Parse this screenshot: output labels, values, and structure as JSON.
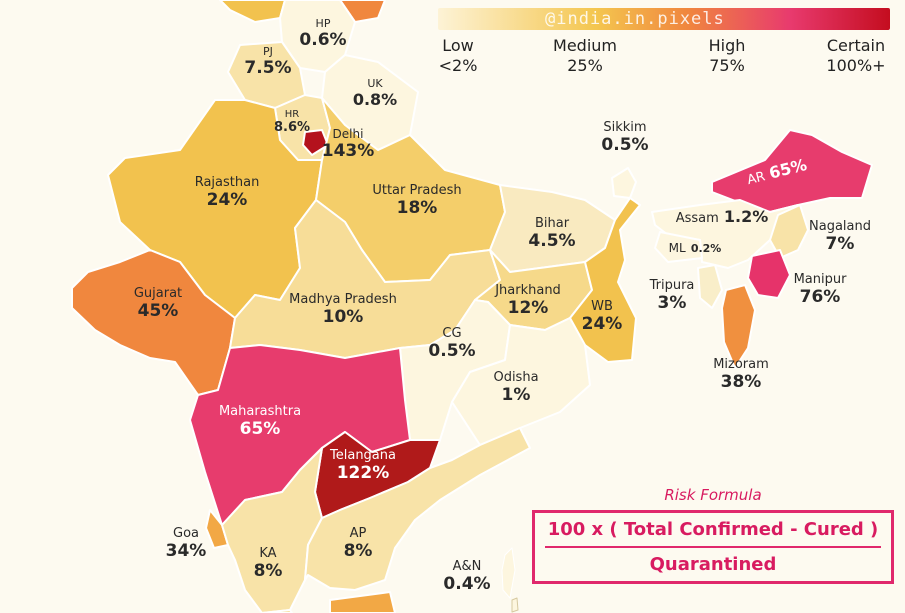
{
  "watermark": "@india.in.pixels",
  "legend": {
    "colors": [
      "#fdf3d6",
      "#f4c64f",
      "#f0873e",
      "#e83a6e",
      "#c40d1f"
    ],
    "stops": [
      {
        "name": "Low",
        "value": "<2%"
      },
      {
        "name": "Medium",
        "value": "25%"
      },
      {
        "name": "High",
        "value": "75%"
      },
      {
        "name": "Certain",
        "value": "100%+"
      }
    ]
  },
  "regions": [
    {
      "name": "HP",
      "value": "0.6%",
      "color": "#fdf6df"
    },
    {
      "name": "PJ",
      "value": "7.5%",
      "color": "#f8e3a8"
    },
    {
      "name": "UK",
      "value": "0.8%",
      "color": "#fdf6df"
    },
    {
      "name": "HR",
      "value": "8.6%",
      "color": "#f8e3a8"
    },
    {
      "name": "Delhi",
      "value": "143%",
      "color": "#b4121d"
    },
    {
      "name": "Rajasthan",
      "value": "24%",
      "color": "#f2c24e"
    },
    {
      "name": "Uttar Pradesh",
      "value": "18%",
      "color": "#f4ce6a"
    },
    {
      "name": "Sikkim",
      "value": "0.5%",
      "color": "#fdf6df"
    },
    {
      "name": "AR",
      "value": "65%",
      "color": "#e73c6d"
    },
    {
      "name": "Assam",
      "value": "1.2%",
      "color": "#fdf6df"
    },
    {
      "name": "Nagaland",
      "value": "7%",
      "color": "#f8e3a8"
    },
    {
      "name": "ML",
      "value": "0.2%",
      "color": "#fdf6df"
    },
    {
      "name": "Bihar",
      "value": "4.5%",
      "color": "#f9eac0"
    },
    {
      "name": "Gujarat",
      "value": "45%",
      "color": "#f0873e"
    },
    {
      "name": "Madhya Pradesh",
      "value": "10%",
      "color": "#f7dd98"
    },
    {
      "name": "Jharkhand",
      "value": "12%",
      "color": "#f6d98a"
    },
    {
      "name": "WB",
      "value": "24%",
      "color": "#f2c24e"
    },
    {
      "name": "Tripura",
      "value": "3%",
      "color": "#f9eec9"
    },
    {
      "name": "Manipur",
      "value": "76%",
      "color": "#e6336a"
    },
    {
      "name": "CG",
      "value": "0.5%",
      "color": "#fdf6df"
    },
    {
      "name": "Odisha",
      "value": "1%",
      "color": "#fdf6df"
    },
    {
      "name": "Mizoram",
      "value": "38%",
      "color": "#f0903f"
    },
    {
      "name": "Maharashtra",
      "value": "65%",
      "color": "#e73c6d"
    },
    {
      "name": "Telangana",
      "value": "122%",
      "color": "#b01a1a"
    },
    {
      "name": "Goa",
      "value": "34%",
      "color": "#f2a845"
    },
    {
      "name": "KA",
      "value": "8%",
      "color": "#f8e3a8"
    },
    {
      "name": "AP",
      "value": "8%",
      "color": "#f8e3a8"
    },
    {
      "name": "A&N",
      "value": "0.4%",
      "color": "#fdf6df"
    }
  ],
  "formula": {
    "title": "Risk Formula",
    "numerator": "100 x ( Total Confirmed - Cured )",
    "denominator": "Quarantined"
  }
}
